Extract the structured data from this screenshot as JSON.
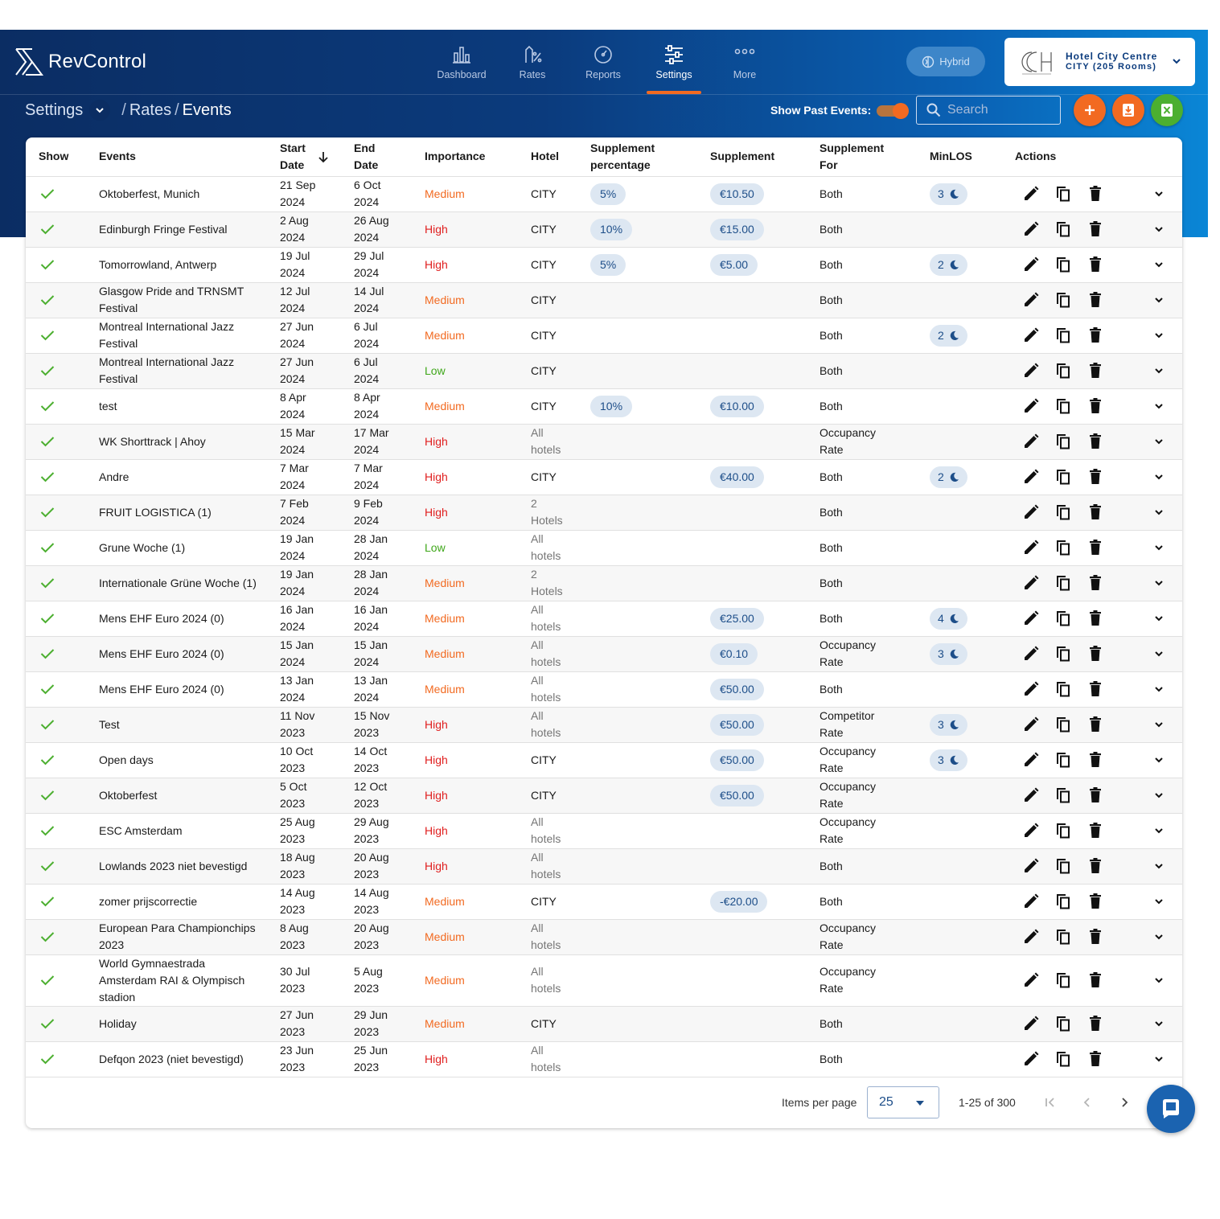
{
  "app": {
    "brand": "RevControl"
  },
  "nav": [
    {
      "label": "Dashboard",
      "icon": "bar-chart-icon",
      "active": false
    },
    {
      "label": "Rates",
      "icon": "rates-icon",
      "active": false
    },
    {
      "label": "Reports",
      "icon": "gauge-icon",
      "active": false
    },
    {
      "label": "Settings",
      "icon": "sliders-icon",
      "active": true
    },
    {
      "label": "More",
      "icon": "more-dots-icon",
      "active": false
    }
  ],
  "mode_badge": "Hybrid",
  "hotel": {
    "name": "Hotel City Centre",
    "sub": "CITY (205 Rooms)"
  },
  "breadcrumb": {
    "root": "Settings",
    "mid": "Rates",
    "current": "Events",
    "sep": "/"
  },
  "toolbar": {
    "show_past_label": "Show Past Events:",
    "show_past_on": true,
    "search_placeholder": "Search"
  },
  "table": {
    "headers": {
      "show": "Show",
      "events": "Events",
      "start": "Start Date",
      "end": "End Date",
      "importance": "Importance",
      "hotel": "Hotel",
      "supp_pct": "Supplement percentage",
      "supp": "Supplement",
      "supp_for": "Supplement For",
      "minlos": "MinLOS",
      "actions": "Actions"
    },
    "rows": [
      {
        "event": "Oktoberfest, Munich",
        "start": "21 Sep 2024",
        "end": "6 Oct 2024",
        "importance": "Medium",
        "hotel": "CITY",
        "supp_pct": "5%",
        "supp": "€10.50",
        "supp_for": "Both",
        "minlos": "3"
      },
      {
        "event": "Edinburgh Fringe Festival",
        "start": "2 Aug 2024",
        "end": "26 Aug 2024",
        "importance": "High",
        "hotel": "CITY",
        "supp_pct": "10%",
        "supp": "€15.00",
        "supp_for": "Both",
        "minlos": ""
      },
      {
        "event": "Tomorrowland, Antwerp",
        "start": "19 Jul 2024",
        "end": "29 Jul 2024",
        "importance": "High",
        "hotel": "CITY",
        "supp_pct": "5%",
        "supp": "€5.00",
        "supp_for": "Both",
        "minlos": "2"
      },
      {
        "event": "Glasgow Pride and TRNSMT Festival",
        "start": "12 Jul 2024",
        "end": "14 Jul 2024",
        "importance": "Medium",
        "hotel": "CITY",
        "supp_pct": "",
        "supp": "",
        "supp_for": "Both",
        "minlos": ""
      },
      {
        "event": "Montreal International Jazz Festival",
        "start": "27 Jun 2024",
        "end": "6 Jul 2024",
        "importance": "Medium",
        "hotel": "CITY",
        "supp_pct": "",
        "supp": "",
        "supp_for": "Both",
        "minlos": "2"
      },
      {
        "event": "Montreal International Jazz Festival",
        "start": "27 Jun 2024",
        "end": "6 Jul 2024",
        "importance": "Low",
        "hotel": "CITY",
        "supp_pct": "",
        "supp": "",
        "supp_for": "Both",
        "minlos": ""
      },
      {
        "event": "test",
        "start": "8 Apr 2024",
        "end": "8 Apr 2024",
        "importance": "Medium",
        "hotel": "CITY",
        "supp_pct": "10%",
        "supp": "€10.00",
        "supp_for": "Both",
        "minlos": ""
      },
      {
        "event": "WK Shorttrack | Ahoy",
        "start": "15 Mar 2024",
        "end": "17 Mar 2024",
        "importance": "High",
        "hotel": "All hotels",
        "supp_pct": "",
        "supp": "",
        "supp_for": "Occupancy Rate",
        "minlos": ""
      },
      {
        "event": "Andre",
        "start": "7 Mar 2024",
        "end": "7 Mar 2024",
        "importance": "High",
        "hotel": "CITY",
        "supp_pct": "",
        "supp": "€40.00",
        "supp_for": "Both",
        "minlos": "2"
      },
      {
        "event": "FRUIT LOGISTICA (1)",
        "start": "7 Feb 2024",
        "end": "9 Feb 2024",
        "importance": "High",
        "hotel": "2 Hotels",
        "supp_pct": "",
        "supp": "",
        "supp_for": "Both",
        "minlos": ""
      },
      {
        "event": "Grune Woche (1)",
        "start": "19 Jan 2024",
        "end": "28 Jan 2024",
        "importance": "Low",
        "hotel": "All hotels",
        "supp_pct": "",
        "supp": "",
        "supp_for": "Both",
        "minlos": ""
      },
      {
        "event": "Internationale Grüne Woche (1)",
        "start": "19 Jan 2024",
        "end": "28 Jan 2024",
        "importance": "Medium",
        "hotel": "2 Hotels",
        "supp_pct": "",
        "supp": "",
        "supp_for": "Both",
        "minlos": ""
      },
      {
        "event": "Mens EHF Euro 2024 (0)",
        "start": "16 Jan 2024",
        "end": "16 Jan 2024",
        "importance": "Medium",
        "hotel": "All hotels",
        "supp_pct": "",
        "supp": "€25.00",
        "supp_for": "Both",
        "minlos": "4"
      },
      {
        "event": "Mens EHF Euro 2024 (0)",
        "start": "15 Jan 2024",
        "end": "15 Jan 2024",
        "importance": "Medium",
        "hotel": "All hotels",
        "supp_pct": "",
        "supp": "€0.10",
        "supp_for": "Occupancy Rate",
        "minlos": "3"
      },
      {
        "event": "Mens EHF Euro 2024 (0)",
        "start": "13 Jan 2024",
        "end": "13 Jan 2024",
        "importance": "Medium",
        "hotel": "All hotels",
        "supp_pct": "",
        "supp": "€50.00",
        "supp_for": "Both",
        "minlos": ""
      },
      {
        "event": "Test",
        "start": "11 Nov 2023",
        "end": "15 Nov 2023",
        "importance": "High",
        "hotel": "All hotels",
        "supp_pct": "",
        "supp": "€50.00",
        "supp_for": "Competitor Rate",
        "minlos": "3"
      },
      {
        "event": "Open days",
        "start": "10 Oct 2023",
        "end": "14 Oct 2023",
        "importance": "High",
        "hotel": "CITY",
        "supp_pct": "",
        "supp": "€50.00",
        "supp_for": "Occupancy Rate",
        "minlos": "3"
      },
      {
        "event": "Oktoberfest",
        "start": "5 Oct 2023",
        "end": "12 Oct 2023",
        "importance": "High",
        "hotel": "CITY",
        "supp_pct": "",
        "supp": "€50.00",
        "supp_for": "Occupancy Rate",
        "minlos": ""
      },
      {
        "event": "ESC Amsterdam",
        "start": "25 Aug 2023",
        "end": "29 Aug 2023",
        "importance": "High",
        "hotel": "All hotels",
        "supp_pct": "",
        "supp": "",
        "supp_for": "Occupancy Rate",
        "minlos": ""
      },
      {
        "event": "Lowlands 2023 niet bevestigd",
        "start": "18 Aug 2023",
        "end": "20 Aug 2023",
        "importance": "High",
        "hotel": "All hotels",
        "supp_pct": "",
        "supp": "",
        "supp_for": "Both",
        "minlos": ""
      },
      {
        "event": "zomer prijscorrectie",
        "start": "14 Aug 2023",
        "end": "14 Aug 2023",
        "importance": "Medium",
        "hotel": "CITY",
        "supp_pct": "",
        "supp": "-€20.00",
        "supp_for": "Both",
        "minlos": ""
      },
      {
        "event": "European Para Championchips 2023",
        "start": "8 Aug 2023",
        "end": "20 Aug 2023",
        "importance": "Medium",
        "hotel": "All hotels",
        "supp_pct": "",
        "supp": "",
        "supp_for": "Occupancy Rate",
        "minlos": ""
      },
      {
        "event": "World Gymnaestrada Amsterdam RAI & Olympisch stadion",
        "start": "30 Jul 2023",
        "end": "5 Aug 2023",
        "importance": "Medium",
        "hotel": "All hotels",
        "supp_pct": "",
        "supp": "",
        "supp_for": "Occupancy Rate",
        "minlos": ""
      },
      {
        "event": "Holiday",
        "start": "27 Jun 2023",
        "end": "29 Jun 2023",
        "importance": "Medium",
        "hotel": "CITY",
        "supp_pct": "",
        "supp": "",
        "supp_for": "Both",
        "minlos": ""
      },
      {
        "event": "Defqon 2023 (niet bevestigd)",
        "start": "23 Jun 2023",
        "end": "25 Jun 2023",
        "importance": "High",
        "hotel": "All hotels",
        "supp_pct": "",
        "supp": "",
        "supp_for": "Both",
        "minlos": ""
      }
    ]
  },
  "pagination": {
    "items_per_page_label": "Items per page",
    "items_per_page": "25",
    "range": "1-25 of 300"
  },
  "colors": {
    "accent": "#f26a21",
    "excel": "#4caf30",
    "navy": "#0b2d63",
    "chip_bg": "#dde7f2",
    "chip_text": "#1d4e89"
  }
}
